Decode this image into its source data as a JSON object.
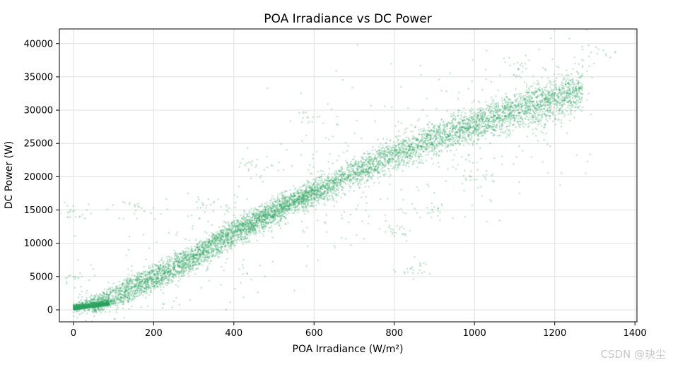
{
  "chart_data": {
    "type": "scatter",
    "title": "POA Irradiance vs DC Power",
    "xlabel": "POA Irradiance (W/m²)",
    "ylabel": "DC Power (W)",
    "xlim": [
      -35,
      1405
    ],
    "ylim": [
      -1800,
      42200
    ],
    "xticks": [
      0,
      200,
      400,
      600,
      800,
      1000,
      1200,
      1400
    ],
    "yticks": [
      0,
      5000,
      10000,
      15000,
      20000,
      25000,
      30000,
      35000,
      40000
    ],
    "grid": true,
    "point_color": "#2ca25f",
    "point_opacity": 0.25,
    "series": [
      {
        "main_band_points": [
          [
            0,
            0
          ],
          [
            50,
            300
          ],
          [
            100,
            1700
          ],
          [
            200,
            4700
          ],
          [
            300,
            8000
          ],
          [
            400,
            11800
          ],
          [
            500,
            14600
          ],
          [
            600,
            17800
          ],
          [
            700,
            20600
          ],
          [
            800,
            23300
          ],
          [
            900,
            25700
          ],
          [
            1000,
            27800
          ],
          [
            1100,
            29800
          ],
          [
            1200,
            31600
          ],
          [
            1260,
            33000
          ]
        ],
        "upper_band_points": [
          [
            0,
            100
          ],
          [
            100,
            3000
          ],
          [
            200,
            6000
          ],
          [
            300,
            9000
          ],
          [
            400,
            12500
          ],
          [
            500,
            15500
          ],
          [
            600,
            18000
          ]
        ],
        "lower_band_points": [
          [
            50,
            0
          ],
          [
            150,
            2200
          ],
          [
            250,
            5200
          ],
          [
            350,
            8500
          ],
          [
            450,
            12000
          ],
          [
            550,
            16000
          ],
          [
            650,
            18500
          ]
        ],
        "outlier_clusters": [
          [
            5,
            5000
          ],
          [
            10,
            15000
          ],
          [
            150,
            15000
          ],
          [
            350,
            15500
          ],
          [
            450,
            22000
          ],
          [
            600,
            29000
          ],
          [
            800,
            12000
          ],
          [
            850,
            6000
          ],
          [
            900,
            15000
          ],
          [
            1000,
            20000
          ],
          [
            1100,
            36000
          ],
          [
            1320,
            38800
          ]
        ]
      }
    ]
  },
  "watermark": "CSDN @玦尘"
}
